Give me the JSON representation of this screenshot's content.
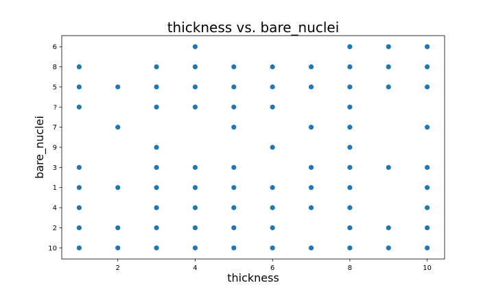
{
  "chart_data": {
    "type": "scatter",
    "title": "thickness vs. bare_nuclei",
    "xlabel": "thickness",
    "ylabel": "bare_nuclei",
    "xlim": [
      0.55,
      10.45
    ],
    "x_ticks": [
      2,
      4,
      6,
      8,
      10
    ],
    "y_categories": [
      "10",
      "2",
      "4",
      "1",
      "3",
      "9",
      "7",
      "?",
      "5",
      "8",
      "6"
    ],
    "grid": false,
    "point_color": "#1f77b4",
    "points": [
      {
        "x": 1,
        "y": "8"
      },
      {
        "x": 1,
        "y": "5"
      },
      {
        "x": 1,
        "y": "?"
      },
      {
        "x": 1,
        "y": "3"
      },
      {
        "x": 1,
        "y": "1"
      },
      {
        "x": 1,
        "y": "4"
      },
      {
        "x": 1,
        "y": "2"
      },
      {
        "x": 1,
        "y": "10"
      },
      {
        "x": 2,
        "y": "5"
      },
      {
        "x": 2,
        "y": "7"
      },
      {
        "x": 2,
        "y": "1"
      },
      {
        "x": 2,
        "y": "2"
      },
      {
        "x": 2,
        "y": "10"
      },
      {
        "x": 3,
        "y": "8"
      },
      {
        "x": 3,
        "y": "5"
      },
      {
        "x": 3,
        "y": "?"
      },
      {
        "x": 3,
        "y": "9"
      },
      {
        "x": 3,
        "y": "3"
      },
      {
        "x": 3,
        "y": "1"
      },
      {
        "x": 3,
        "y": "4"
      },
      {
        "x": 3,
        "y": "2"
      },
      {
        "x": 3,
        "y": "10"
      },
      {
        "x": 4,
        "y": "6"
      },
      {
        "x": 4,
        "y": "8"
      },
      {
        "x": 4,
        "y": "5"
      },
      {
        "x": 4,
        "y": "?"
      },
      {
        "x": 4,
        "y": "3"
      },
      {
        "x": 4,
        "y": "1"
      },
      {
        "x": 4,
        "y": "4"
      },
      {
        "x": 4,
        "y": "2"
      },
      {
        "x": 4,
        "y": "10"
      },
      {
        "x": 5,
        "y": "8"
      },
      {
        "x": 5,
        "y": "5"
      },
      {
        "x": 5,
        "y": "?"
      },
      {
        "x": 5,
        "y": "7"
      },
      {
        "x": 5,
        "y": "3"
      },
      {
        "x": 5,
        "y": "1"
      },
      {
        "x": 5,
        "y": "4"
      },
      {
        "x": 5,
        "y": "2"
      },
      {
        "x": 5,
        "y": "10"
      },
      {
        "x": 6,
        "y": "8"
      },
      {
        "x": 6,
        "y": "5"
      },
      {
        "x": 6,
        "y": "?"
      },
      {
        "x": 6,
        "y": "9"
      },
      {
        "x": 6,
        "y": "1"
      },
      {
        "x": 6,
        "y": "4"
      },
      {
        "x": 6,
        "y": "2"
      },
      {
        "x": 6,
        "y": "10"
      },
      {
        "x": 7,
        "y": "8"
      },
      {
        "x": 7,
        "y": "5"
      },
      {
        "x": 7,
        "y": "7"
      },
      {
        "x": 7,
        "y": "3"
      },
      {
        "x": 7,
        "y": "1"
      },
      {
        "x": 7,
        "y": "4"
      },
      {
        "x": 7,
        "y": "10"
      },
      {
        "x": 8,
        "y": "6"
      },
      {
        "x": 8,
        "y": "8"
      },
      {
        "x": 8,
        "y": "5"
      },
      {
        "x": 8,
        "y": "?"
      },
      {
        "x": 8,
        "y": "7"
      },
      {
        "x": 8,
        "y": "9"
      },
      {
        "x": 8,
        "y": "3"
      },
      {
        "x": 8,
        "y": "1"
      },
      {
        "x": 8,
        "y": "4"
      },
      {
        "x": 8,
        "y": "2"
      },
      {
        "x": 8,
        "y": "10"
      },
      {
        "x": 9,
        "y": "6"
      },
      {
        "x": 9,
        "y": "8"
      },
      {
        "x": 9,
        "y": "5"
      },
      {
        "x": 9,
        "y": "3"
      },
      {
        "x": 9,
        "y": "2"
      },
      {
        "x": 9,
        "y": "10"
      },
      {
        "x": 10,
        "y": "6"
      },
      {
        "x": 10,
        "y": "8"
      },
      {
        "x": 10,
        "y": "5"
      },
      {
        "x": 10,
        "y": "7"
      },
      {
        "x": 10,
        "y": "3"
      },
      {
        "x": 10,
        "y": "1"
      },
      {
        "x": 10,
        "y": "4"
      },
      {
        "x": 10,
        "y": "2"
      },
      {
        "x": 10,
        "y": "10"
      }
    ]
  }
}
